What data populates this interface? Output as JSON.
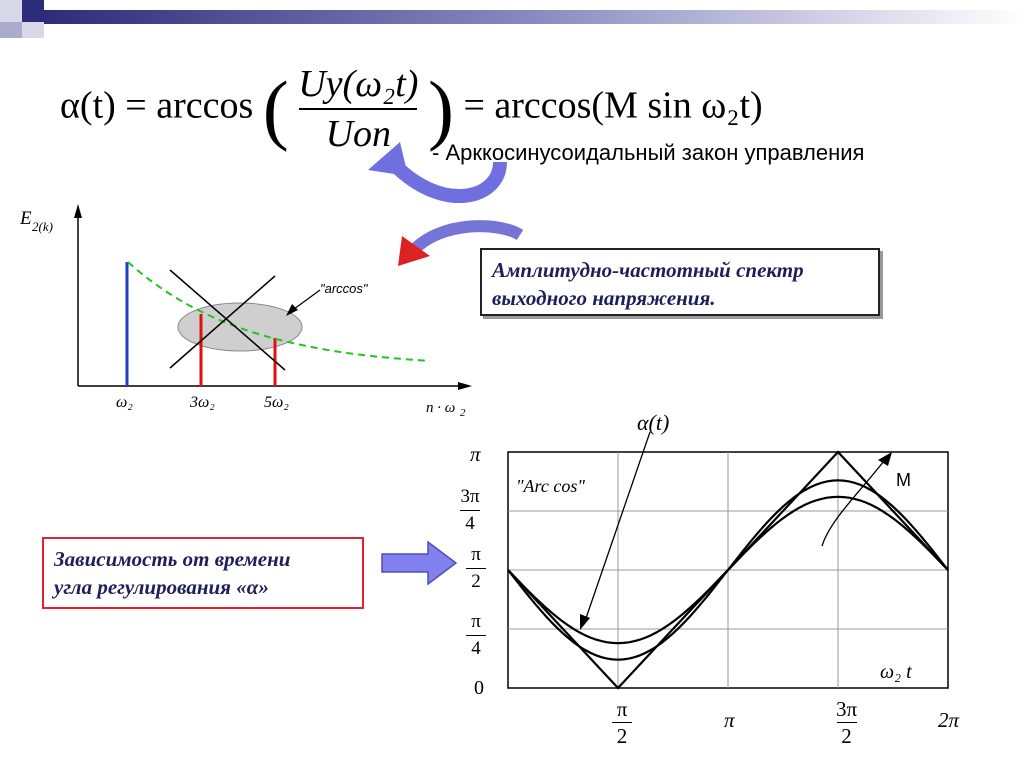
{
  "formula": {
    "lhs": "α(t) = arccos",
    "numerator": "Uy(ω₂t)",
    "denominator": "Uon",
    "rhs": "= arccos(M sin ω₂t)"
  },
  "law_text": "-    Арккосинусоидальный закон управления",
  "spectrum_box": {
    "line1": "Амплитудно-частотный спектр",
    "line2": " выходного напряжения."
  },
  "dependence_box": {
    "line1": "Зависимость от времени",
    "line2": "угла регулирования «α»"
  },
  "spectrum_chart": {
    "y_label": "E",
    "y_label_sub": "2(k)",
    "x_label": "n · ω",
    "x_label_sub": "2",
    "arccos_label": "\"arccos\"",
    "ticks": [
      "ω₂",
      "3ω₂",
      "5ω₂"
    ]
  },
  "time_chart": {
    "alpha_label": "α(t)",
    "arccos_label": "\"Arc cos\"",
    "m_label": "M",
    "x_axis_label": "ω₂ t",
    "y_ticks": {
      "pi": "π",
      "three_pi_4_num": "3π",
      "three_pi_4_den": "4",
      "pi_2_num": "π",
      "pi_2_den": "2",
      "pi_4_num": "π",
      "pi_4_den": "4",
      "zero": "0"
    },
    "x_ticks": {
      "pi_2_num": "π",
      "pi_2_den": "2",
      "pi": "π",
      "three_pi_2_num": "3π",
      "three_pi_2_den": "2",
      "two_pi": "2π"
    }
  },
  "colors": {
    "blue_line": "#1f3cc8",
    "red_line": "#e01010",
    "green_dashed": "#22c422",
    "arrow_blue": "#6f6fe0",
    "box_text": "#1e1e5a"
  },
  "chart_data": {
    "type": "line",
    "x_ticks": [
      "π/2",
      "π",
      "3π/2",
      "2π"
    ],
    "y_ticks": [
      "0",
      "π/4",
      "π/2",
      "3π/4",
      "π"
    ],
    "series": [
      {
        "x": [
          0,
          0.5,
          1,
          1.5,
          2
        ],
        "y": [
          0.5,
          0.0,
          0.5,
          1.0,
          0.5
        ]
      },
      {
        "x": [
          0,
          0.5,
          1,
          1.5,
          2
        ],
        "y": [
          0.5,
          0.12,
          0.5,
          0.88,
          0.5
        ]
      },
      {
        "x": [
          0,
          0.5,
          1,
          1.5,
          2
        ],
        "y": [
          0.5,
          0.19,
          0.5,
          0.81,
          0.5
        ]
      }
    ],
    "xlim": [
      0,
      2
    ],
    "ylim": [
      0,
      1
    ],
    "grid": true
  }
}
